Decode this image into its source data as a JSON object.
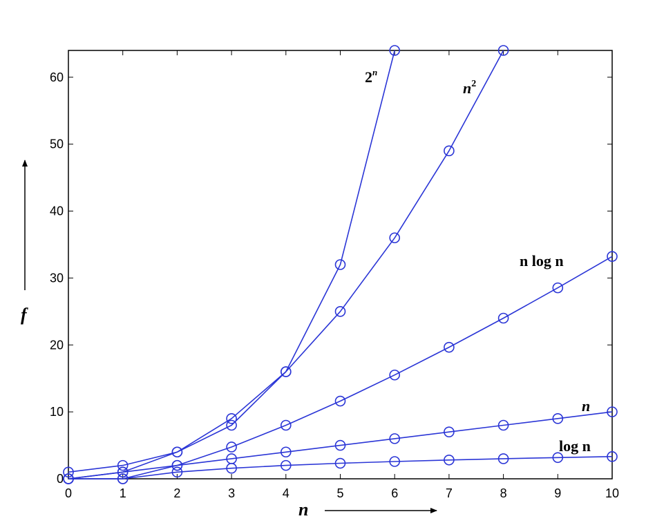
{
  "chart_data": {
    "type": "line",
    "x": [
      0,
      1,
      2,
      3,
      4,
      5,
      6,
      7,
      8,
      9,
      10
    ],
    "xlim": [
      0,
      10
    ],
    "ylim": [
      0,
      64
    ],
    "xticks": [
      0,
      1,
      2,
      3,
      4,
      5,
      6,
      7,
      8,
      9,
      10
    ],
    "yticks": [
      0,
      10,
      20,
      30,
      40,
      50,
      60
    ],
    "xlabel": "n",
    "ylabel": "f",
    "grid": false,
    "marker": "circle",
    "color": "#2a35d6",
    "series": [
      {
        "name": "2",
        "label_sup": "n",
        "values": [
          1,
          2,
          4,
          8,
          16,
          32,
          64,
          null,
          null,
          null,
          null
        ]
      },
      {
        "name": "n",
        "label_sup": "2",
        "values": [
          0,
          1,
          4,
          9,
          16,
          25,
          36,
          49,
          64,
          null,
          null
        ]
      },
      {
        "name": "n log n",
        "values": [
          0,
          0,
          2,
          4.75,
          8,
          11.61,
          15.51,
          19.65,
          24,
          28.53,
          33.22
        ]
      },
      {
        "name": "n",
        "values": [
          0,
          1,
          2,
          3,
          4,
          5,
          6,
          7,
          8,
          9,
          10
        ]
      },
      {
        "name": "log n",
        "values": [
          0,
          0,
          1,
          1.58,
          2,
          2.32,
          2.58,
          2.81,
          3,
          3.17,
          3.32
        ]
      }
    ]
  }
}
